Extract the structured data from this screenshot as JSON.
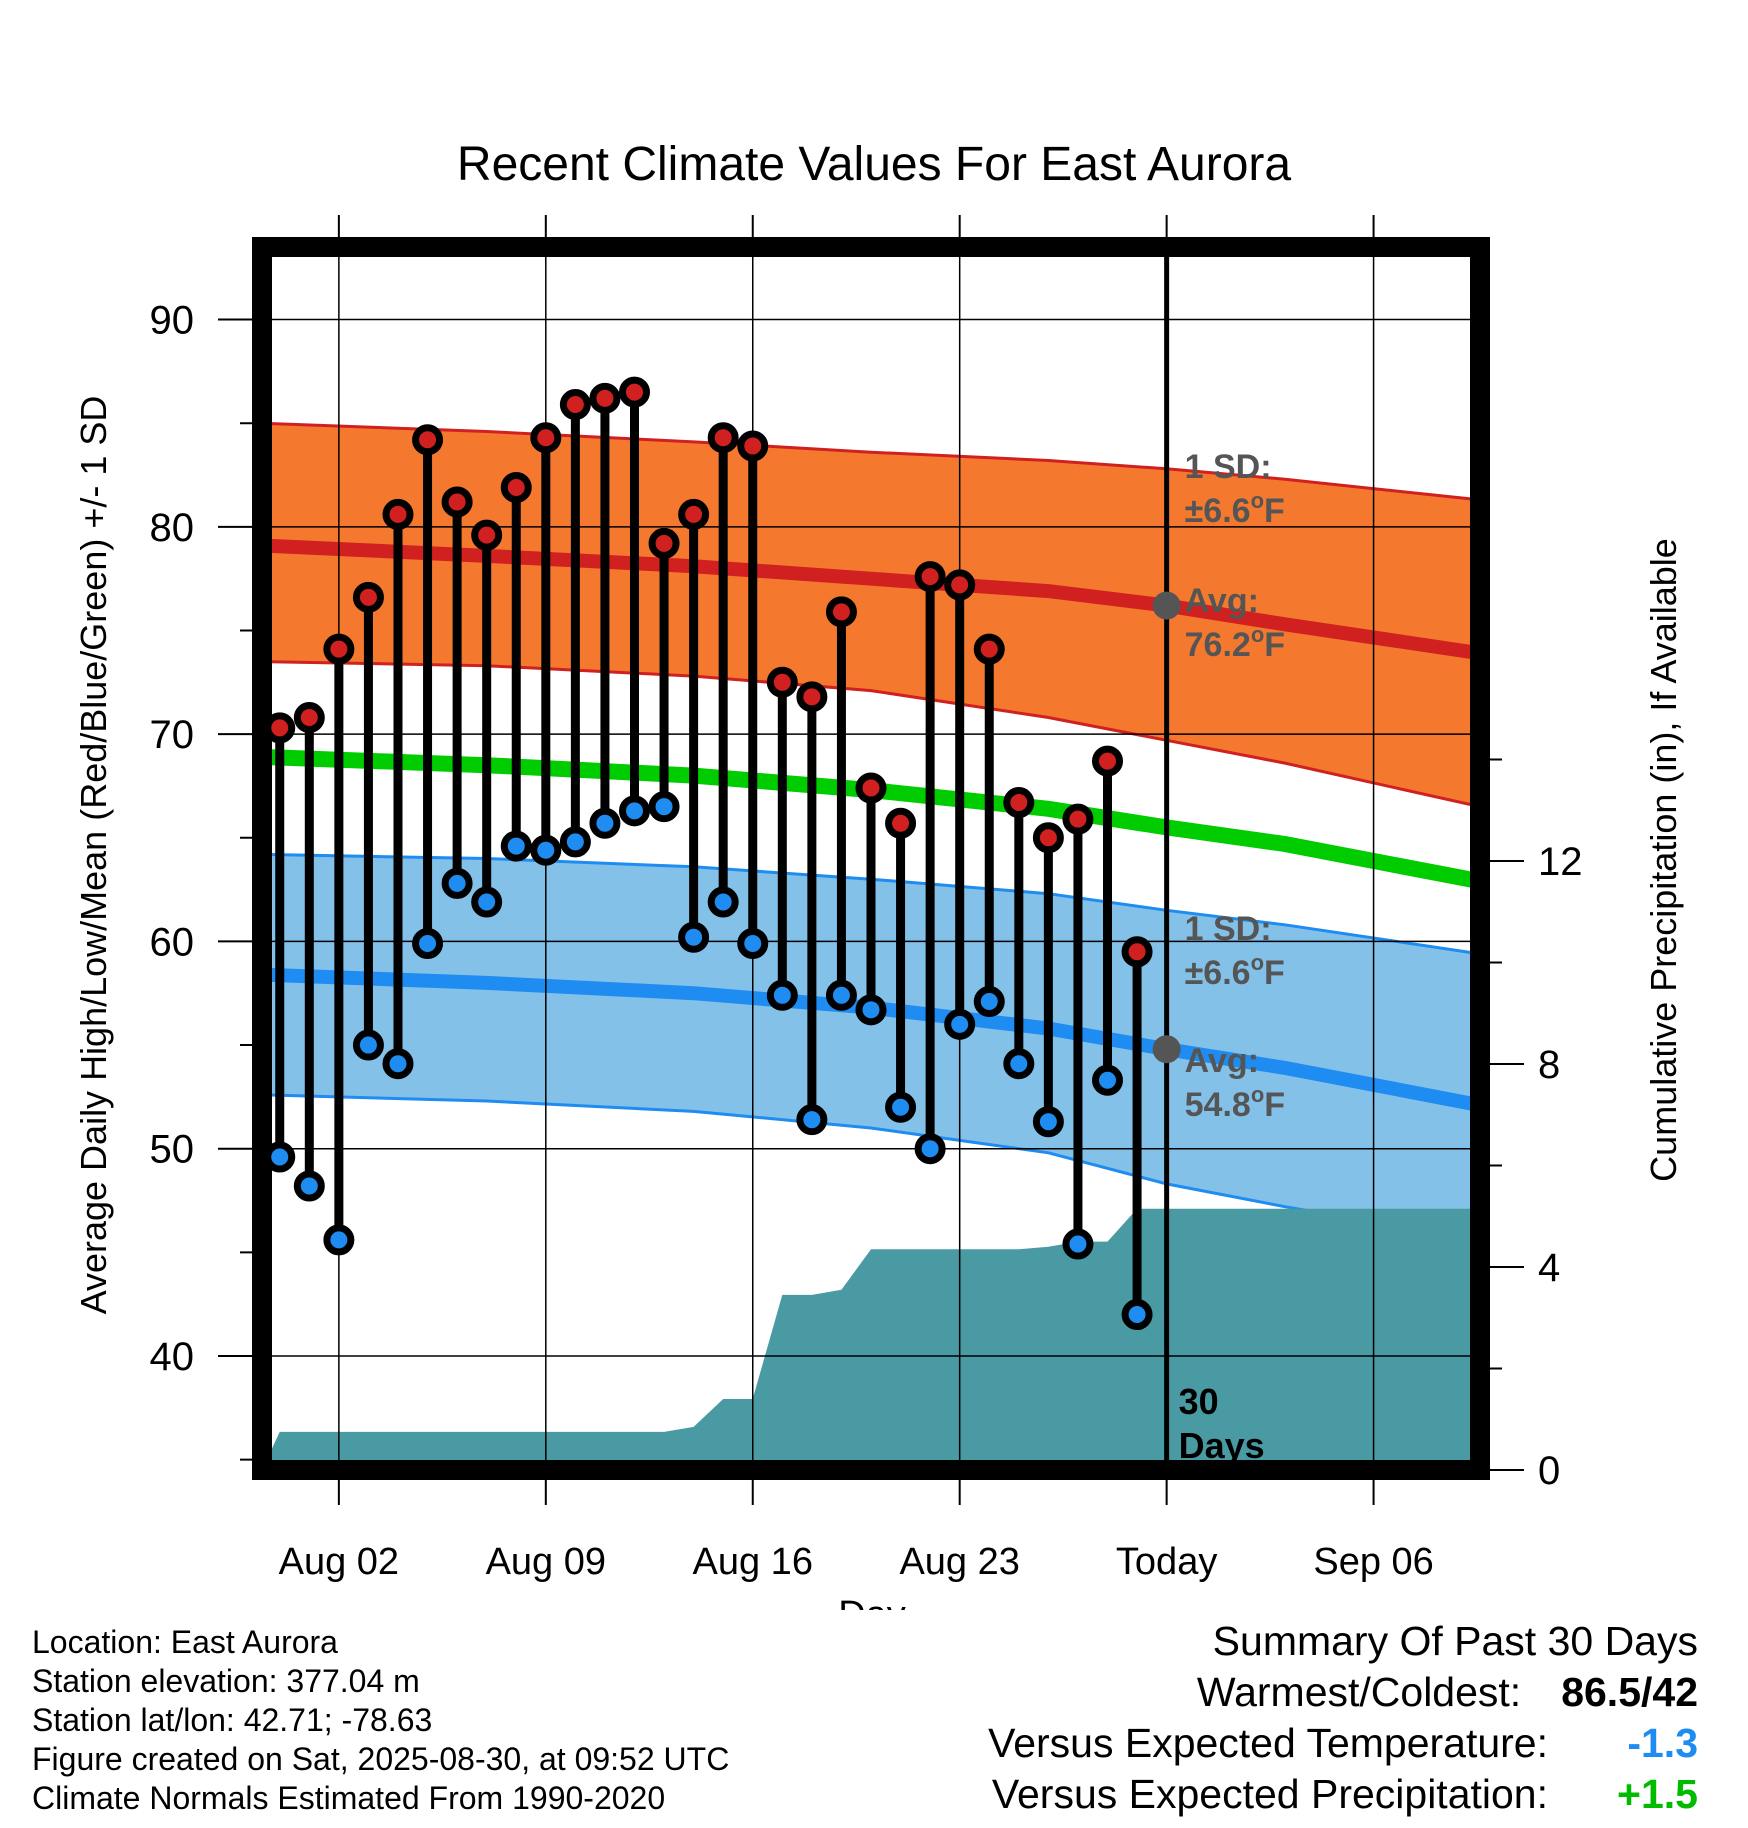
{
  "chart_data": {
    "type": "line",
    "title": "Recent Climate Values For East Aurora",
    "xlabel": "Day",
    "ylabel": "Average Daily High/Low/Mean (Red/Blue/Green) +/- 1 SD",
    "y2label": "Cumulative Precipitation (in), If Available",
    "ylim": [
      34.5,
      93.5
    ],
    "y2lim": [
      0,
      24.1
    ],
    "xlim": [
      -2.6,
      38.6
    ],
    "yticks": [
      40,
      50,
      60,
      70,
      80,
      90
    ],
    "y2ticks": [
      0,
      4,
      8,
      12
    ],
    "xticks": [
      {
        "day": 0,
        "label": "Aug 02"
      },
      {
        "day": 7,
        "label": "Aug 09"
      },
      {
        "day": 14,
        "label": "Aug 16"
      },
      {
        "day": 21,
        "label": "Aug 23"
      },
      {
        "day": 28,
        "label": "Today"
      },
      {
        "day": 35,
        "label": "Sep 06"
      }
    ],
    "today_day": 28,
    "days": [
      -2,
      -1,
      0,
      1,
      2,
      3,
      4,
      5,
      6,
      7,
      8,
      9,
      10,
      11,
      12,
      13,
      14,
      15,
      16,
      17,
      18,
      19,
      20,
      21,
      22,
      23,
      24,
      25,
      26,
      27
    ],
    "daily_high": [
      70.3,
      70.8,
      74.1,
      76.6,
      80.6,
      84.2,
      81.2,
      79.6,
      81.9,
      84.3,
      85.9,
      86.2,
      86.5,
      79.2,
      80.6,
      84.3,
      83.9,
      72.5,
      71.8,
      75.9,
      67.4,
      65.7,
      77.6,
      77.2,
      74.1,
      66.7,
      65.0,
      65.9,
      68.7,
      59.5
    ],
    "daily_low": [
      49.6,
      48.2,
      45.6,
      55.0,
      54.1,
      59.9,
      62.8,
      61.9,
      64.6,
      64.4,
      64.8,
      65.7,
      66.3,
      66.5,
      60.2,
      61.9,
      59.9,
      57.4,
      51.4,
      57.4,
      56.7,
      52.0,
      50.0,
      56.0,
      57.1,
      54.1,
      51.3,
      45.4,
      53.3,
      42.0
    ],
    "precip_cumulative": [
      [
        -2.6,
        0
      ],
      [
        -2,
        0.75
      ],
      [
        11,
        0.75
      ],
      [
        12,
        0.85
      ],
      [
        13,
        1.4
      ],
      [
        14,
        1.4
      ],
      [
        15,
        3.45
      ],
      [
        16,
        3.45
      ],
      [
        17,
        3.55
      ],
      [
        18,
        4.35
      ],
      [
        23,
        4.35
      ],
      [
        24,
        4.4
      ],
      [
        25,
        4.5
      ],
      [
        26,
        4.5
      ],
      [
        27,
        5.15
      ],
      [
        38.6,
        5.15
      ]
    ],
    "normals": {
      "high_mean": [
        [
          -2.6,
          79.1
        ],
        [
          5,
          78.6
        ],
        [
          12,
          78.1
        ],
        [
          18,
          77.5
        ],
        [
          24,
          76.9
        ],
        [
          28,
          76.2
        ],
        [
          32,
          75.3
        ],
        [
          38.6,
          73.9
        ]
      ],
      "high_upper": [
        [
          -2.6,
          85.0
        ],
        [
          5,
          84.6
        ],
        [
          12,
          84.1
        ],
        [
          18,
          83.6
        ],
        [
          24,
          83.2
        ],
        [
          28,
          82.8
        ],
        [
          32,
          82.3
        ],
        [
          38.6,
          81.3
        ]
      ],
      "high_lower": [
        [
          -2.6,
          73.5
        ],
        [
          5,
          73.3
        ],
        [
          12,
          72.8
        ],
        [
          18,
          72.1
        ],
        [
          24,
          70.8
        ],
        [
          28,
          69.7
        ],
        [
          32,
          68.6
        ],
        [
          38.6,
          66.5
        ]
      ],
      "mean": [
        [
          -2.6,
          68.9
        ],
        [
          5,
          68.5
        ],
        [
          12,
          68.0
        ],
        [
          18,
          67.3
        ],
        [
          24,
          66.4
        ],
        [
          28,
          65.5
        ],
        [
          32,
          64.7
        ],
        [
          38.6,
          62.9
        ]
      ],
      "low_mean": [
        [
          -2.6,
          58.4
        ],
        [
          5,
          58.0
        ],
        [
          12,
          57.5
        ],
        [
          18,
          56.8
        ],
        [
          24,
          55.8
        ],
        [
          28,
          54.8
        ],
        [
          32,
          53.9
        ],
        [
          38.6,
          52.1
        ]
      ],
      "low_upper": [
        [
          -2.6,
          64.2
        ],
        [
          5,
          64.0
        ],
        [
          12,
          63.6
        ],
        [
          18,
          63.0
        ],
        [
          24,
          62.3
        ],
        [
          28,
          61.5
        ],
        [
          32,
          60.8
        ],
        [
          38.6,
          59.4
        ]
      ],
      "low_lower": [
        [
          -2.6,
          52.6
        ],
        [
          5,
          52.3
        ],
        [
          12,
          51.8
        ],
        [
          18,
          51.0
        ],
        [
          24,
          49.8
        ],
        [
          28,
          48.3
        ],
        [
          32,
          47.2
        ],
        [
          38.6,
          45.6
        ]
      ]
    },
    "annotations": {
      "high_sd_title": "1 SD:",
      "high_sd_value": "±6.6",
      "high_avg_title": "Avg:",
      "high_avg_value": "76.2",
      "low_sd_title": "1 SD:",
      "low_sd_value": "±6.6",
      "low_avg_title": "Avg:",
      "low_avg_value": "54.8",
      "unit": "F",
      "degree": "o",
      "window_count": "30",
      "window_unit": "Days"
    },
    "colors": {
      "high_band": "#f4792f",
      "high_line": "#d02020",
      "low_band": "#84c1e8",
      "low_line": "#1e8cf0",
      "mean_line": "#00cc00",
      "precip": "#4a9aa4",
      "high_dot": "#d02020",
      "low_dot": "#1e8cf0",
      "marker": "#555555"
    }
  },
  "info": {
    "location": "Location: East Aurora",
    "elevation": "Station elevation: 377.04 m",
    "latlon": "Station lat/lon: 42.71; -78.63",
    "created": "Figure created on Sat, 2025-08-30, at 09:52 UTC",
    "normals": "Climate Normals Estimated From 1990-2020"
  },
  "summary": {
    "title": "Summary Of Past 30 Days",
    "warmest_label": "Warmest/Coldest:",
    "warmest_value": "86.5/42",
    "temp_label": "Versus Expected Temperature:",
    "temp_value": "-1.3",
    "temp_color": "#1e8cf0",
    "precip_label": "Versus Expected Precipitation:",
    "precip_value": "+1.5",
    "precip_color": "#00bb00"
  }
}
